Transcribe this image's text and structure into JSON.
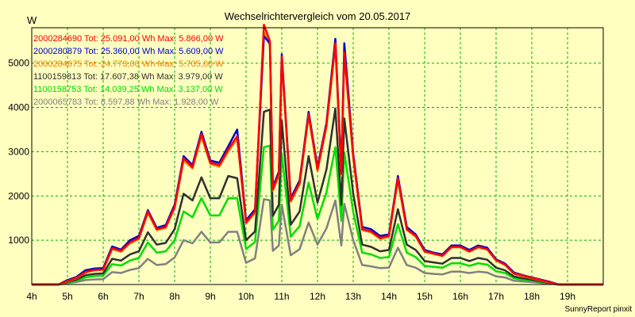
{
  "chart_data": {
    "type": "line",
    "title": "Wechselrichtervergleich vom 20.05.2017",
    "ylabel": "W",
    "footer": "SunnyReport pinxit",
    "x_ticks": [
      "4h",
      "5h",
      "6h",
      "7h",
      "8h",
      "9h",
      "10h",
      "11h",
      "12h",
      "13h",
      "14h",
      "15h",
      "16h",
      "17h",
      "18h",
      "19h"
    ],
    "y_ticks": [
      1000,
      2000,
      3000,
      4000,
      5000
    ],
    "x_range_hours": [
      4.0,
      20.0
    ],
    "ylim": [
      0,
      5800
    ],
    "grid": true,
    "legend_position": "top-left",
    "x": [
      4.0,
      4.25,
      4.5,
      4.75,
      5.0,
      5.25,
      5.5,
      5.75,
      6.0,
      6.25,
      6.5,
      6.75,
      7.0,
      7.25,
      7.5,
      7.75,
      8.0,
      8.25,
      8.5,
      8.75,
      9.0,
      9.25,
      9.5,
      9.75,
      10.0,
      10.25,
      10.5,
      10.667,
      10.75,
      10.917,
      11.0,
      11.25,
      11.5,
      11.75,
      12.0,
      12.25,
      12.5,
      12.667,
      12.75,
      13.0,
      13.25,
      13.5,
      13.75,
      14.0,
      14.25,
      14.5,
      14.75,
      15.0,
      15.25,
      15.5,
      15.75,
      16.0,
      16.25,
      16.5,
      16.75,
      17.0,
      17.25,
      17.5,
      17.75,
      18.0,
      18.25,
      18.5,
      18.75,
      19.0,
      19.25,
      19.5,
      19.75,
      20.0
    ],
    "series": [
      {
        "name": "2000284690 Tot: 25.091,00 Wh Max: 5.866,00 W",
        "color": "#ff0000",
        "values": [
          0,
          0,
          0,
          0,
          80,
          150,
          280,
          330,
          340,
          820,
          760,
          950,
          1050,
          1650,
          1250,
          1300,
          1750,
          2850,
          2650,
          3400,
          2750,
          2700,
          3050,
          3350,
          1400,
          1650,
          5866,
          5500,
          2150,
          2500,
          5150,
          1900,
          2300,
          3850,
          2600,
          3600,
          5450,
          2500,
          5250,
          2900,
          1250,
          1200,
          1050,
          1100,
          2400,
          1250,
          1100,
          750,
          700,
          650,
          850,
          850,
          750,
          850,
          800,
          550,
          450,
          250,
          200,
          150,
          100,
          50,
          0,
          0,
          0,
          0,
          0,
          0
        ]
      },
      {
        "name": "2000280879 Tot: 25.360,00 Wh Max: 5.609,00 W",
        "color": "#0000cc",
        "values": [
          0,
          0,
          0,
          0,
          100,
          170,
          320,
          360,
          370,
          860,
          790,
          1000,
          1100,
          1680,
          1280,
          1340,
          1800,
          2900,
          2700,
          3450,
          2800,
          2750,
          3120,
          3500,
          1450,
          1700,
          5609,
          5450,
          2200,
          2550,
          5200,
          1950,
          2350,
          3900,
          2650,
          3650,
          5550,
          2550,
          5450,
          2950,
          1300,
          1250,
          1100,
          1130,
          2450,
          1300,
          1130,
          780,
          720,
          680,
          880,
          880,
          780,
          880,
          830,
          570,
          470,
          270,
          210,
          160,
          110,
          60,
          0,
          0,
          0,
          0,
          0,
          0
        ]
      },
      {
        "name": "2000284675 Tot: 24.773,00 Wh Max: 5.705,00 W",
        "color": "#ff8000",
        "values": [
          0,
          0,
          0,
          0,
          75,
          140,
          270,
          320,
          330,
          800,
          740,
          930,
          1030,
          1620,
          1230,
          1280,
          1720,
          2800,
          2620,
          3350,
          2720,
          2660,
          3000,
          3300,
          1380,
          1620,
          5705,
          5400,
          2120,
          2460,
          5100,
          1870,
          2260,
          3800,
          2560,
          3560,
          5400,
          2460,
          5200,
          2850,
          1230,
          1180,
          1030,
          1080,
          2350,
          1230,
          1080,
          740,
          690,
          640,
          840,
          840,
          740,
          840,
          790,
          540,
          440,
          240,
          190,
          140,
          90,
          45,
          0,
          0,
          0,
          0,
          0,
          0
        ]
      },
      {
        "name": "1100159813 Tot: 17.607,38 Wh Max: 3.979,00 W",
        "color": "#303030",
        "values": [
          0,
          0,
          0,
          0,
          60,
          110,
          210,
          240,
          250,
          580,
          540,
          680,
          750,
          1180,
          900,
          940,
          1250,
          2050,
          1900,
          2420,
          1950,
          1950,
          2450,
          2400,
          1000,
          1200,
          3900,
          3950,
          1550,
          1800,
          3700,
          1350,
          1650,
          2900,
          1850,
          2600,
          3979,
          1800,
          3750,
          2050,
          900,
          850,
          750,
          780,
          1700,
          900,
          780,
          530,
          500,
          470,
          600,
          600,
          530,
          600,
          560,
          380,
          320,
          180,
          140,
          110,
          70,
          35,
          0,
          0,
          0,
          0,
          0,
          0
        ]
      },
      {
        "name": "1100158753 Tot: 14.039,25 Wh Max: 3.137,00 W",
        "color": "#00dd00",
        "values": [
          0,
          0,
          0,
          0,
          45,
          85,
          160,
          190,
          200,
          460,
          430,
          540,
          600,
          950,
          720,
          750,
          1000,
          1650,
          1520,
          1950,
          1560,
          1560,
          1950,
          1950,
          800,
          960,
          3100,
          3137,
          1240,
          1440,
          2950,
          1080,
          1320,
          2300,
          1480,
          2080,
          3100,
          1440,
          2980,
          1640,
          720,
          680,
          600,
          620,
          1360,
          720,
          620,
          420,
          400,
          380,
          480,
          480,
          420,
          480,
          450,
          300,
          260,
          140,
          110,
          90,
          55,
          30,
          0,
          0,
          0,
          0,
          0,
          0
        ]
      },
      {
        "name": "2000065783 Tot: 8.597,88 Wh Max: 1.928,00 W",
        "color": "#808080",
        "values": [
          0,
          0,
          0,
          0,
          30,
          55,
          100,
          115,
          120,
          280,
          260,
          330,
          370,
          580,
          440,
          460,
          610,
          1000,
          930,
          1190,
          950,
          950,
          1190,
          1190,
          490,
          590,
          1928,
          1900,
          760,
          880,
          1800,
          660,
          800,
          1400,
          900,
          1270,
          1900,
          880,
          1820,
          1000,
          440,
          410,
          370,
          380,
          830,
          440,
          380,
          260,
          240,
          230,
          290,
          290,
          260,
          290,
          270,
          185,
          160,
          85,
          70,
          55,
          35,
          20,
          0,
          0,
          0,
          0,
          0,
          0
        ]
      }
    ]
  }
}
